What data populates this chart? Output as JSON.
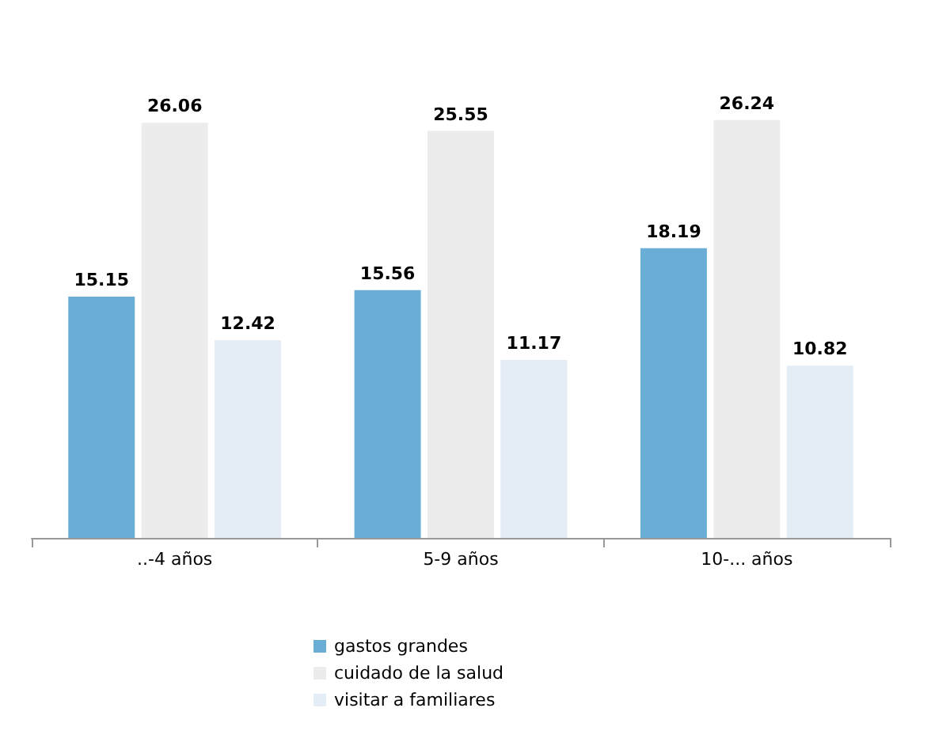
{
  "chart_data": {
    "type": "bar",
    "categories": [
      "..-4 años",
      "5-9 años",
      "10-... años"
    ],
    "series": [
      {
        "name": "gastos grandes",
        "color": "#6aaed6",
        "values": [
          15.15,
          15.56,
          18.19
        ]
      },
      {
        "name": "cuidado de la salud",
        "color": "#ececec",
        "values": [
          26.06,
          25.55,
          26.24
        ]
      },
      {
        "name": "visitar a familiares",
        "color": "#e4ecf6",
        "values": [
          12.42,
          11.17,
          10.82
        ]
      }
    ],
    "data_labels": true,
    "legend": "bottom"
  }
}
